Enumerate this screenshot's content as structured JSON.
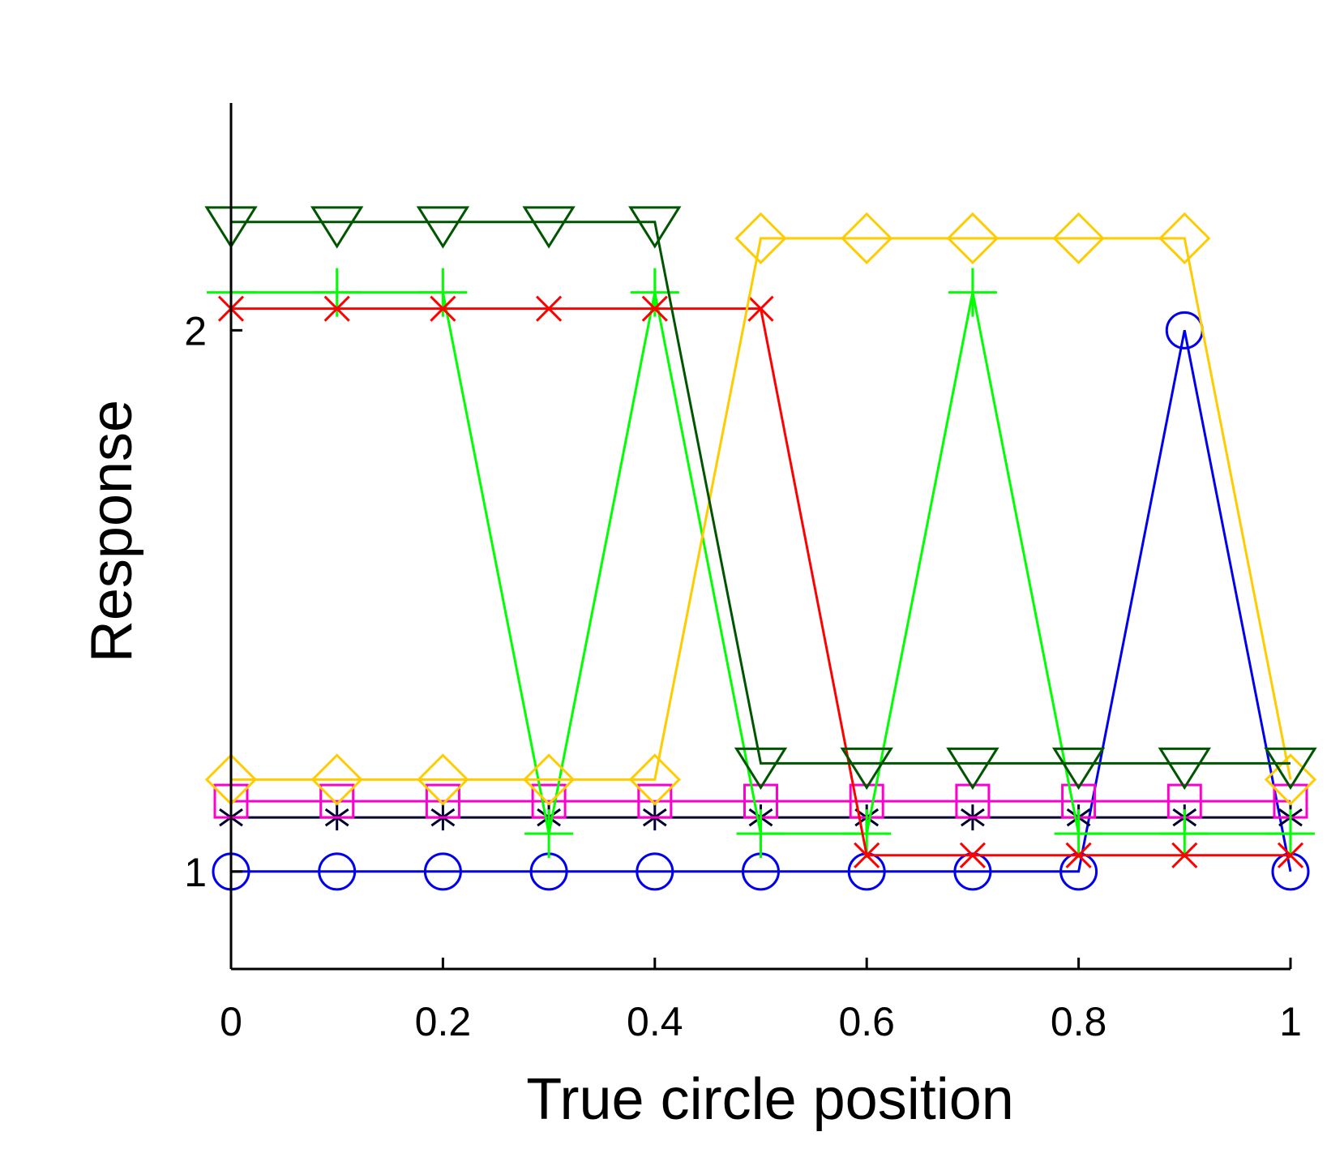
{
  "chart_data": {
    "type": "line",
    "title": "",
    "xlabel": "True circle position",
    "ylabel": "Response",
    "xlim": [
      0,
      1
    ],
    "ylim": [
      0.82,
      2.42
    ],
    "x": [
      0,
      0.1,
      0.2,
      0.3,
      0.4,
      0.5,
      0.6,
      0.7,
      0.8,
      0.9,
      1
    ],
    "x_ticks": [
      0,
      0.2,
      0.4,
      0.6,
      0.8,
      1
    ],
    "x_tick_labels": [
      "0",
      "0.2",
      "0.4",
      "0.6",
      "0.8",
      "1"
    ],
    "y_ticks": [
      1,
      2
    ],
    "y_tick_labels": [
      "1",
      "2"
    ],
    "grid": false,
    "legend": "none",
    "series": [
      {
        "color": "#0000ee",
        "marker": "circle",
        "values": [
          1,
          1,
          1,
          1,
          1,
          1,
          1,
          1,
          1,
          2,
          1
        ]
      },
      {
        "color": "#000033",
        "marker": "asterisk",
        "values": [
          1.1,
          1.1,
          1.1,
          1.1,
          1.1,
          1.1,
          1.1,
          1.1,
          1.1,
          1.1,
          1.1
        ]
      },
      {
        "color": "#ff00cc",
        "marker": "square",
        "values": [
          1.13,
          1.13,
          1.13,
          1.13,
          1.13,
          1.13,
          1.13,
          1.13,
          1.13,
          1.13,
          1.13
        ]
      },
      {
        "color": "#00ff00",
        "marker": "plus",
        "values": [
          2.07,
          2.07,
          2.07,
          1.07,
          2.07,
          1.07,
          1.07,
          2.07,
          1.07,
          1.07,
          1.07
        ]
      },
      {
        "color": "#ff0000",
        "marker": "x",
        "values": [
          2.04,
          2.04,
          2.04,
          2.04,
          2.04,
          2.04,
          1.03,
          1.03,
          1.03,
          1.03,
          1.03
        ]
      },
      {
        "color": "#ffcc00",
        "marker": "diamond",
        "values": [
          1.17,
          1.17,
          1.17,
          1.17,
          1.17,
          2.17,
          2.17,
          2.17,
          2.17,
          2.17,
          1.17
        ]
      },
      {
        "color": "#005500",
        "marker": "triangle-down",
        "values": [
          2.2,
          2.2,
          2.2,
          2.2,
          2.2,
          1.2,
          1.2,
          1.2,
          1.2,
          1.2,
          1.2
        ]
      }
    ]
  }
}
